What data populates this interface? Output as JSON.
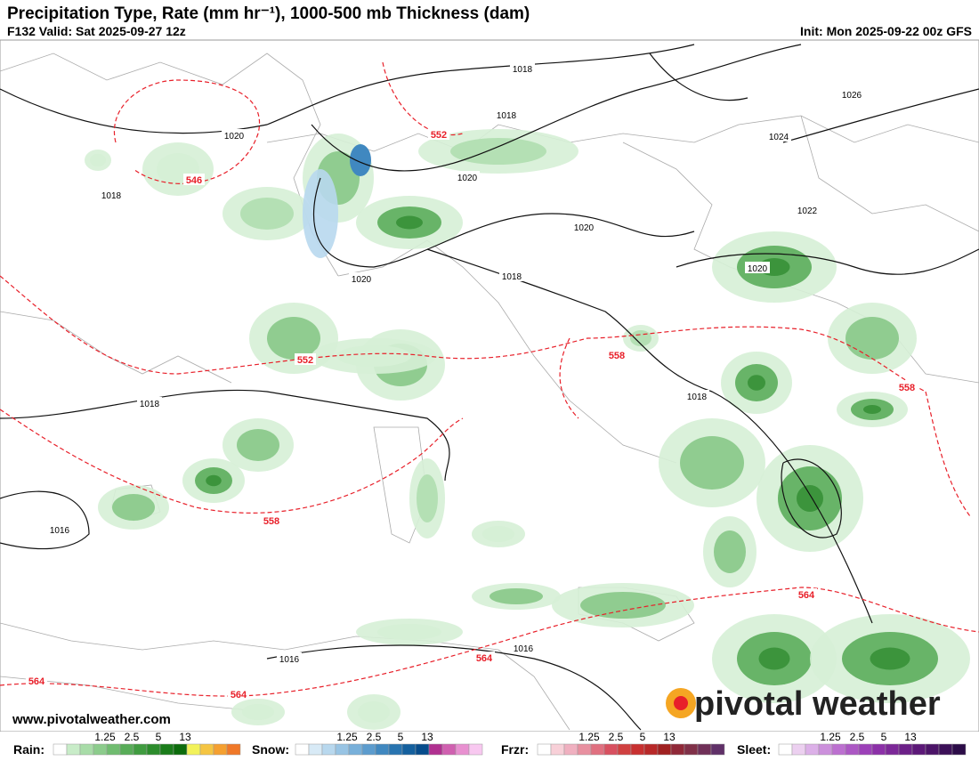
{
  "header": {
    "title": "Precipitation Type, Rate (mm hr⁻¹), 1000-500 mb Thickness (dam)",
    "valid": "F132 Valid: Sat 2025-09-27 12z",
    "init": "Init: Mon 2025-09-22 00z GFS"
  },
  "watermark": "www.pivotalweather.com",
  "logo": "pivotal weather",
  "pressure_labels": [
    "1018",
    "1018",
    "1026",
    "1020",
    "1024",
    "1018",
    "1020",
    "1022",
    "1020",
    "1020",
    "1020",
    "1018",
    "1018",
    "1018",
    "1016",
    "1016",
    "1016"
  ],
  "thickness_labels": [
    "552",
    "546",
    "552",
    "558",
    "558",
    "558",
    "564",
    "564",
    "564",
    "564"
  ],
  "legend": [
    {
      "label": "Rain:",
      "ticks": [
        "1.25",
        "2.5",
        "5",
        "13"
      ],
      "colors": [
        "#ffffff",
        "#c8ecc8",
        "#a8dca8",
        "#8ccc8c",
        "#70bc70",
        "#58ac58",
        "#409c40",
        "#2c8c2c",
        "#1a7c1a",
        "#0c6c0c",
        "#f2f25a",
        "#f5c542",
        "#f5a030",
        "#f07828"
      ]
    },
    {
      "label": "Snow:",
      "ticks": [
        "1.25",
        "2.5",
        "5",
        "13"
      ],
      "colors": [
        "#ffffff",
        "#d8eaf6",
        "#b8d8ee",
        "#98c4e4",
        "#78b0da",
        "#5c9cce",
        "#4088c0",
        "#2874b0",
        "#14609e",
        "#064c8c",
        "#b03090",
        "#d060b0",
        "#e890d0",
        "#f8c8f0"
      ]
    },
    {
      "label": "Frzr:",
      "ticks": [
        "1.25",
        "2.5",
        "5",
        "13"
      ],
      "colors": [
        "#ffffff",
        "#f8d0d8",
        "#f0b0c0",
        "#e890a0",
        "#e07080",
        "#d85060",
        "#d04040",
        "#c83030",
        "#b82828",
        "#a02020",
        "#902838",
        "#803048",
        "#703058",
        "#603068"
      ]
    },
    {
      "label": "Sleet:",
      "ticks": [
        "1.25",
        "2.5",
        "5",
        "13"
      ],
      "colors": [
        "#ffffff",
        "#ecd0f0",
        "#dcb0e8",
        "#cc90dc",
        "#bc70d0",
        "#ac58c4",
        "#9c40b8",
        "#8c30a8",
        "#7c2898",
        "#6c2088",
        "#5c1878",
        "#4c1468",
        "#3c1058",
        "#2c0c48"
      ]
    }
  ]
}
